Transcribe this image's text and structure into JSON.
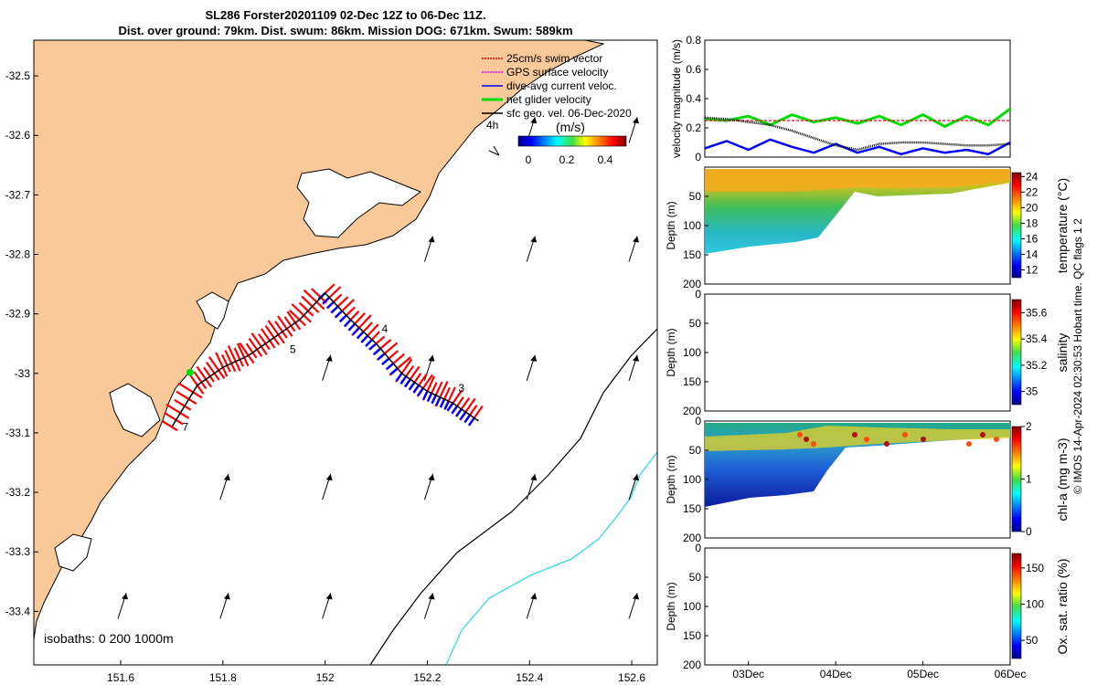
{
  "figure": {
    "title_line1": "SL286 Forster20201109 02-Dec 12Z to 06-Dec 11Z.",
    "title_line2": "Dist. over ground: 79km. Dist. swum: 86km. Mission DOG: 671km. Swum: 589km",
    "credit": "© IMOS 14-Apr-2024 02:30:53 Hobart time. QC flags 1  2"
  },
  "colors": {
    "land": "#f9c99a",
    "swim_vector": "#ff0000",
    "gps_velocity": "#ff00ff",
    "current_velocity": "#0000ff",
    "net_glider": "#00dd00",
    "geo_velocity": "#000000",
    "isobath_200": "#000000",
    "isobath_1000": "#33dddd"
  },
  "chart_data": [
    {
      "type": "map",
      "xlim": [
        151.43,
        152.65
      ],
      "ylim": [
        -33.49,
        -32.44
      ],
      "x_ticks": [
        "151.6",
        "151.8",
        "152",
        "152.2",
        "152.4",
        "152.6"
      ],
      "x_tick_values": [
        151.6,
        151.8,
        152.0,
        152.2,
        152.4,
        152.6
      ],
      "y_ticks": [
        "-32.5",
        "-32.6",
        "-32.7",
        "-32.8",
        "-32.9",
        "-33",
        "-33.1",
        "-33.2",
        "-33.3",
        "-33.4"
      ],
      "y_tick_values": [
        -32.5,
        -32.6,
        -32.7,
        -32.8,
        -32.9,
        -33.0,
        -33.1,
        -33.2,
        -33.3,
        -33.4
      ],
      "legend": {
        "location": "top-right",
        "items": [
          "25cm/s swim vector",
          "GPS surface velocity",
          "dive-avg current veloc.",
          "net glider velocity",
          "sfc geo. vel. 06-Dec-2020"
        ]
      },
      "colorbar": {
        "label": "(m/s)",
        "ticks": [
          "0",
          "0.2",
          "0.4"
        ],
        "range": [
          0,
          0.5
        ],
        "inset_label": "4h"
      },
      "isobath_text": "isobaths: 0   200  1000m",
      "track": [
        {
          "lon": 151.7,
          "lat": -33.09
        },
        {
          "lon": 151.75,
          "lat": -33.02
        },
        {
          "lon": 151.8,
          "lat": -32.99
        },
        {
          "lon": 151.85,
          "lat": -32.97
        },
        {
          "lon": 151.9,
          "lat": -32.94
        },
        {
          "lon": 151.95,
          "lat": -32.91
        },
        {
          "lon": 152.0,
          "lat": -32.865
        },
        {
          "lon": 152.05,
          "lat": -32.91
        },
        {
          "lon": 152.1,
          "lat": -32.95
        },
        {
          "lon": 152.15,
          "lat": -33.0
        },
        {
          "lon": 152.2,
          "lat": -33.03
        },
        {
          "lon": 152.25,
          "lat": -33.05
        },
        {
          "lon": 152.3,
          "lat": -33.08
        }
      ],
      "track_labels": [
        {
          "text": "4",
          "lon": 152.1,
          "lat": -32.925
        },
        {
          "text": "3",
          "lon": 152.25,
          "lat": -33.025
        },
        {
          "text": "5",
          "lon": 151.92,
          "lat": -32.96
        },
        {
          "text": "7",
          "lon": 151.71,
          "lat": -33.09
        }
      ],
      "geo_vectors": [
        {
          "lon": 152.2,
          "lat": -32.8
        },
        {
          "lon": 152.4,
          "lat": -32.8
        },
        {
          "lon": 152.6,
          "lat": -32.8
        },
        {
          "lon": 152.0,
          "lat": -33.0
        },
        {
          "lon": 152.2,
          "lat": -33.0
        },
        {
          "lon": 152.4,
          "lat": -33.0
        },
        {
          "lon": 152.6,
          "lat": -33.0
        },
        {
          "lon": 151.8,
          "lat": -33.2
        },
        {
          "lon": 152.0,
          "lat": -33.2
        },
        {
          "lon": 152.2,
          "lat": -33.2
        },
        {
          "lon": 152.4,
          "lat": -33.2
        },
        {
          "lon": 152.6,
          "lat": -33.2
        },
        {
          "lon": 151.6,
          "lat": -33.4
        },
        {
          "lon": 151.8,
          "lat": -33.4
        },
        {
          "lon": 152.0,
          "lat": -33.4
        },
        {
          "lon": 152.2,
          "lat": -33.4
        },
        {
          "lon": 152.4,
          "lat": -33.4
        },
        {
          "lon": 152.6,
          "lat": -33.4
        },
        {
          "lon": 152.4,
          "lat": -32.6
        },
        {
          "lon": 152.6,
          "lat": -32.6
        }
      ]
    },
    {
      "type": "line",
      "ylabel": "velocity magnitude (m/s)",
      "y_ticks": [
        "0",
        "0.2",
        "0.4",
        "0.6",
        "0.8"
      ],
      "ylim": [
        0,
        0.8
      ],
      "x_ticks": [
        "03Dec",
        "04Dec",
        "05Dec",
        "06Dec"
      ],
      "x": [
        0,
        0.25,
        0.5,
        0.75,
        1.0,
        1.25,
        1.5,
        1.75,
        2.0,
        2.25,
        2.5,
        2.75,
        3.0,
        3.25,
        3.5
      ],
      "series": [
        {
          "values": [
            0.26,
            0.25,
            0.28,
            0.22,
            0.29,
            0.24,
            0.27,
            0.23,
            0.28,
            0.22,
            0.29,
            0.21,
            0.28,
            0.22,
            0.33
          ]
        },
        {
          "values": [
            0.25,
            0.25,
            0.25,
            0.25,
            0.25,
            0.25,
            0.25,
            0.25,
            0.25,
            0.25,
            0.25,
            0.25,
            0.25,
            0.25,
            0.25
          ]
        },
        {
          "values": [
            0.06,
            0.11,
            0.05,
            0.12,
            0.07,
            0.03,
            0.09,
            0.03,
            0.07,
            0.02,
            0.06,
            0.03,
            0.05,
            0.02,
            0.1
          ]
        },
        {
          "values": [
            0.27,
            0.26,
            0.24,
            0.22,
            0.18,
            0.13,
            0.08,
            0.05,
            0.09,
            0.1,
            0.1,
            0.09,
            0.08,
            0.08,
            0.09
          ]
        }
      ]
    },
    {
      "type": "heatmap",
      "ylabel": "Depth (m)",
      "y_ticks": [
        "50",
        "100",
        "150",
        "200"
      ],
      "ylim": [
        200,
        0
      ],
      "colorbar_label": "temperature (°C)",
      "colorbar_ticks": [
        "24",
        "22",
        "20",
        "18",
        "16",
        "14",
        "12"
      ],
      "colorbar_range": [
        11,
        24.5
      ]
    },
    {
      "type": "heatmap",
      "ylabel": "Depth (m)",
      "y_ticks": [
        "0",
        "50",
        "100",
        "150",
        "200"
      ],
      "ylim": [
        200,
        0
      ],
      "colorbar_label": "salinity",
      "colorbar_ticks": [
        "35.6",
        "35.4",
        "35.2",
        "35"
      ],
      "colorbar_range": [
        34.9,
        35.7
      ]
    },
    {
      "type": "heatmap",
      "ylabel": "Depth (m)",
      "y_ticks": [
        "0",
        "50",
        "100",
        "150",
        "200"
      ],
      "ylim": [
        200,
        0
      ],
      "colorbar_label": "chl-a (mg m-3)",
      "colorbar_ticks": [
        "2",
        "1",
        "0"
      ],
      "colorbar_range": [
        0,
        2
      ]
    },
    {
      "type": "heatmap",
      "ylabel": "Depth (m)",
      "y_ticks": [
        "0",
        "50",
        "100",
        "150",
        "200"
      ],
      "ylim": [
        200,
        0
      ],
      "colorbar_label": "Ox. sat. ratio (%)",
      "colorbar_ticks": [
        "150",
        "100",
        "50"
      ],
      "colorbar_range": [
        25,
        170
      ],
      "x_ticks": [
        "03Dec",
        "04Dec",
        "05Dec",
        "06Dec"
      ]
    }
  ]
}
